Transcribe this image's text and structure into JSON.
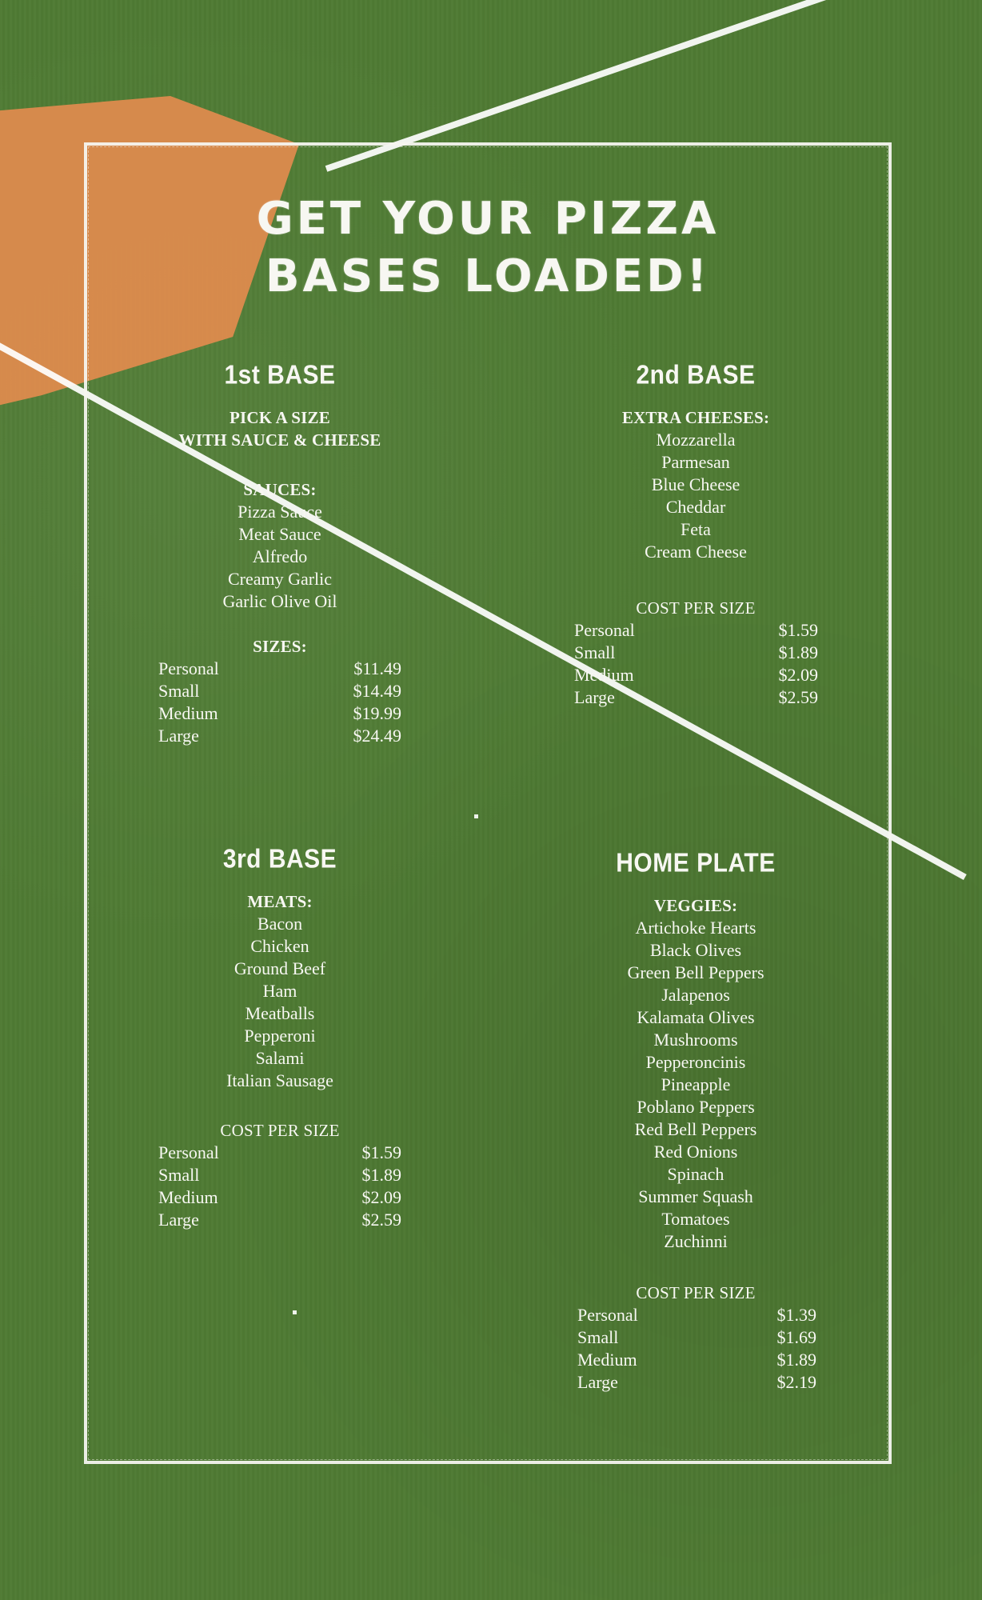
{
  "title": {
    "line1": "Get Your Pizza",
    "line2": "Bases Loaded!"
  },
  "sections": {
    "first_base": {
      "title": "1st BASE",
      "pick_line1": "PICK A SIZE",
      "pick_line2": "WITH SAUCE & CHEESE",
      "sauces_heading": "SAUCES:",
      "sauces": [
        "Pizza Sauce",
        "Meat Sauce",
        "Alfredo",
        "Creamy Garlic",
        "Garlic Olive Oil"
      ],
      "sizes_heading": "SIZES:",
      "sizes": [
        {
          "size": "Personal",
          "price": "$11.49"
        },
        {
          "size": "Small",
          "price": "$14.49"
        },
        {
          "size": "Medium",
          "price": "$19.99"
        },
        {
          "size": "Large",
          "price": "$24.49"
        }
      ]
    },
    "second_base": {
      "title": "2nd BASE",
      "heading": "EXTRA CHEESES:",
      "items": [
        "Mozzarella",
        "Parmesan",
        "Blue Cheese",
        "Cheddar",
        "Feta",
        "Cream Cheese"
      ],
      "cost_heading": "COST PER SIZE",
      "prices": [
        {
          "size": "Personal",
          "price": "$1.59"
        },
        {
          "size": "Small",
          "price": "$1.89"
        },
        {
          "size": "Medium",
          "price": "$2.09"
        },
        {
          "size": "Large",
          "price": "$2.59"
        }
      ]
    },
    "third_base": {
      "title": "3rd BASE",
      "heading": "MEATS:",
      "items": [
        "Bacon",
        "Chicken",
        "Ground Beef",
        "Ham",
        "Meatballs",
        "Pepperoni",
        "Salami",
        "Italian Sausage"
      ],
      "cost_heading": "COST PER SIZE",
      "prices": [
        {
          "size": "Personal",
          "price": "$1.59"
        },
        {
          "size": "Small",
          "price": "$1.89"
        },
        {
          "size": "Medium",
          "price": "$2.09"
        },
        {
          "size": "Large",
          "price": "$2.59"
        }
      ]
    },
    "home_plate": {
      "title": "HOME PLATE",
      "heading": "VEGGIES:",
      "items": [
        "Artichoke Hearts",
        "Black Olives",
        "Green Bell Peppers",
        "Jalapenos",
        "Kalamata Olives",
        "Mushrooms",
        "Pepperoncinis",
        "Pineapple",
        "Poblano Peppers",
        "Red Bell Peppers",
        "Red Onions",
        "Spinach",
        "Summer Squash",
        "Tomatoes",
        "Zuchinni"
      ],
      "cost_heading": "COST PER SIZE",
      "prices": [
        {
          "size": "Personal",
          "price": "$1.39"
        },
        {
          "size": "Small",
          "price": "$1.69"
        },
        {
          "size": "Medium",
          "price": "$1.89"
        },
        {
          "size": "Large",
          "price": "$2.19"
        }
      ]
    }
  },
  "colors": {
    "field_green": "#4f7a33",
    "infield_orange": "#d98b4d",
    "chalk": "#f7f7f2"
  }
}
